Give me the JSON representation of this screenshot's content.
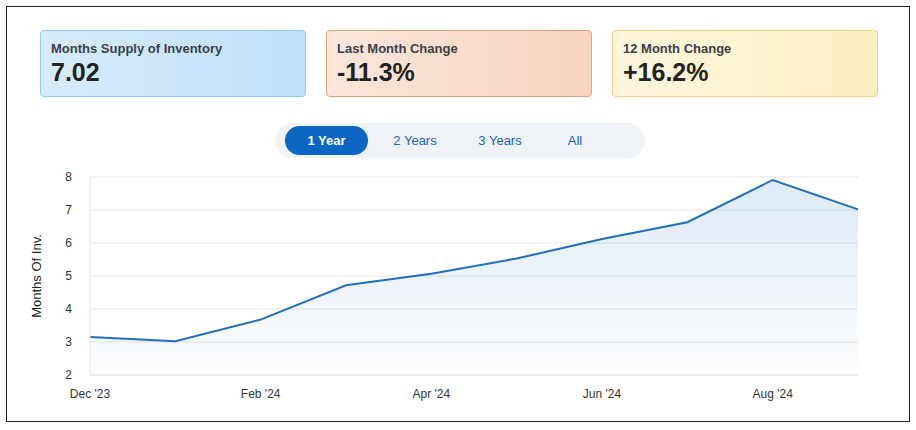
{
  "header": {
    "cards": [
      {
        "title": "Months Supply of Inventory",
        "value": "7.02"
      },
      {
        "title": "Last Month Change",
        "value": "-11.3%"
      },
      {
        "title": "12 Month Change",
        "value": "+16.2%"
      }
    ],
    "tabs": {
      "options": [
        "1 Year",
        "2 Years",
        "3 Years",
        "All"
      ],
      "active": "1 Year"
    }
  },
  "chart_data": {
    "type": "area",
    "y_label": "Months Of Inv.",
    "categories": [
      "Dec '23",
      null,
      "Feb '24",
      null,
      "Apr '24",
      null,
      "Jun '24",
      null,
      "Aug '24",
      null
    ],
    "values": [
      3.15,
      3.02,
      3.68,
      4.72,
      5.07,
      5.53,
      6.12,
      6.63,
      7.91,
      7.02
    ],
    "color": "#1f6fc0",
    "ylim": [
      2,
      8
    ],
    "yticks": [
      2,
      3,
      4,
      5,
      6,
      7,
      8
    ],
    "grid": true
  }
}
